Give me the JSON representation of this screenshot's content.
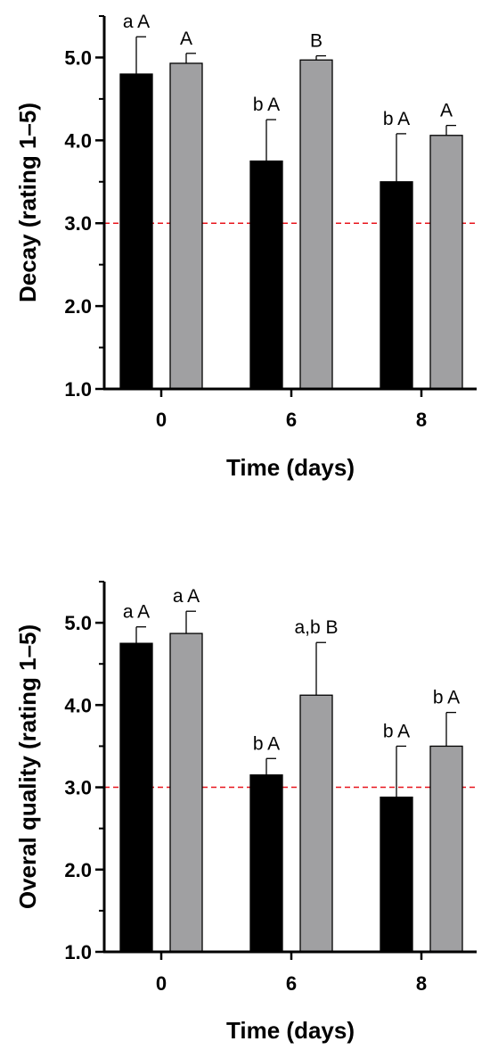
{
  "colors": {
    "series_dark": "#000000",
    "series_light": "#a0a0a2",
    "reference": "#e8141c"
  },
  "chart_data": [
    {
      "type": "bar",
      "xlabel": "Time (days)",
      "ylabel": "Decay (rating 1–5)",
      "categories": [
        "0",
        "6",
        "8"
      ],
      "ylim": [
        1.0,
        5.5
      ],
      "yticks": [
        "1.0",
        "2.0",
        "3.0",
        "4.0",
        "5.0"
      ],
      "reference_line": 3.0,
      "series": [
        {
          "values": [
            4.8,
            3.75,
            3.5
          ],
          "error": [
            0.45,
            0.5,
            0.58
          ]
        },
        {
          "values": [
            4.93,
            4.97,
            4.06
          ],
          "error": [
            0.12,
            0.05,
            0.12
          ]
        }
      ],
      "annotations": [
        [
          "a A",
          "A"
        ],
        [
          "b A",
          "B"
        ],
        [
          "b A",
          "A"
        ]
      ]
    },
    {
      "type": "bar",
      "xlabel": "Time (days)",
      "ylabel": "Overal quality (rating 1–5)",
      "categories": [
        "0",
        "6",
        "8"
      ],
      "ylim": [
        1.0,
        5.5
      ],
      "yticks": [
        "1.0",
        "2.0",
        "3.0",
        "4.0",
        "5.0"
      ],
      "reference_line": 3.0,
      "series": [
        {
          "values": [
            4.75,
            3.15,
            2.88
          ],
          "error": [
            0.2,
            0.2,
            0.62
          ]
        },
        {
          "values": [
            4.87,
            4.12,
            3.5
          ],
          "error": [
            0.27,
            0.64,
            0.41
          ]
        }
      ],
      "annotations": [
        [
          "a A",
          "a A"
        ],
        [
          "b A",
          "a,b B"
        ],
        [
          "b A",
          "b A"
        ]
      ]
    }
  ]
}
